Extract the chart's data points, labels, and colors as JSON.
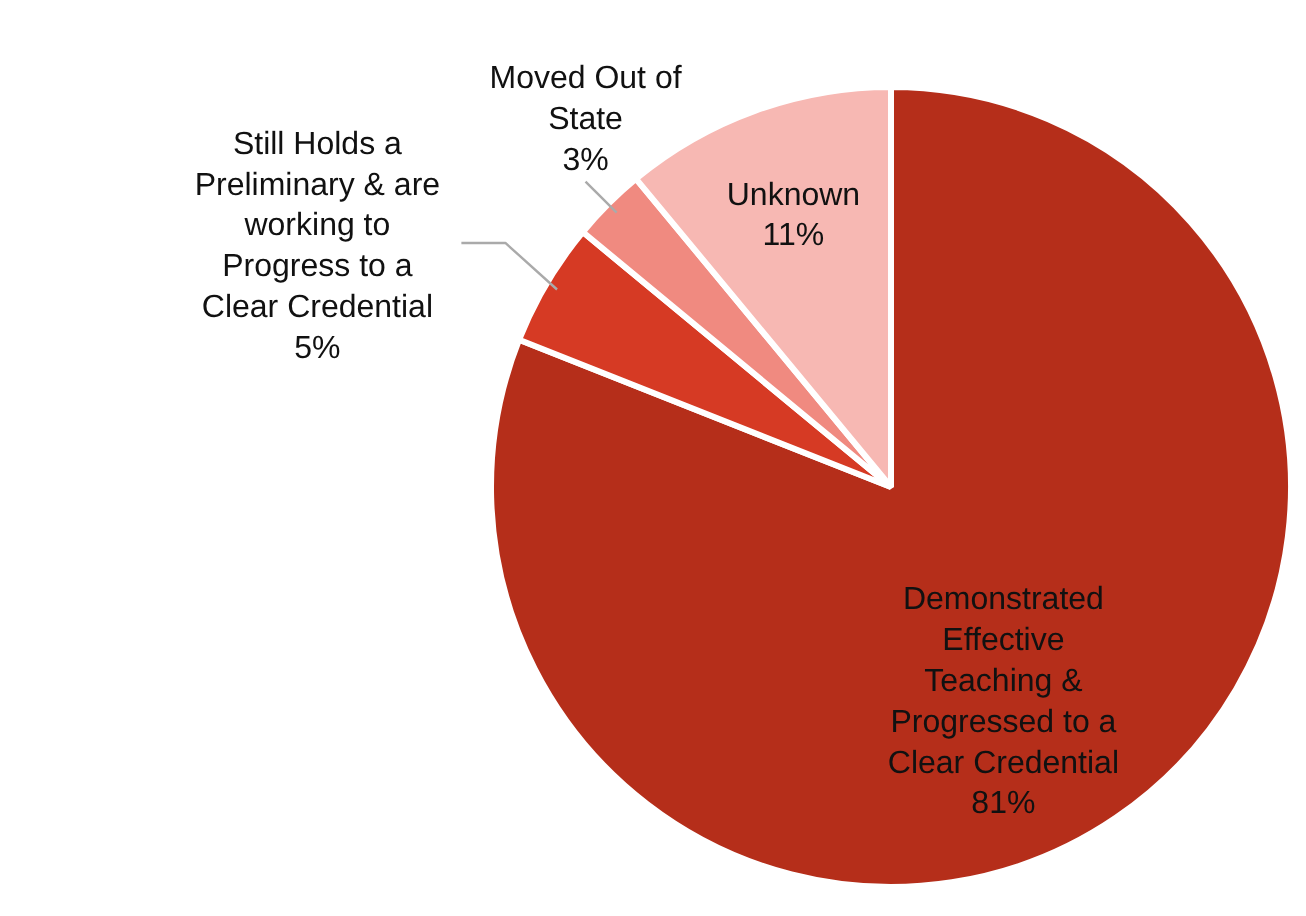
{
  "chart_data": {
    "type": "pie",
    "categories": [
      "Demonstrated\nEffective\nTeaching &\nProgressed to a\nClear Credential",
      "Still Holds a\nPreliminary & are\nworking to\nProgress to a\nClear Credential",
      "Moved Out of\nState",
      "Unknown"
    ],
    "values": [
      81,
      5,
      3,
      11
    ],
    "colors": [
      "#b52e1a",
      "#d63a24",
      "#f08a80",
      "#f7b8b3"
    ],
    "value_labels": [
      "81%",
      "5%",
      "3%",
      "11%"
    ],
    "legend": false
  }
}
